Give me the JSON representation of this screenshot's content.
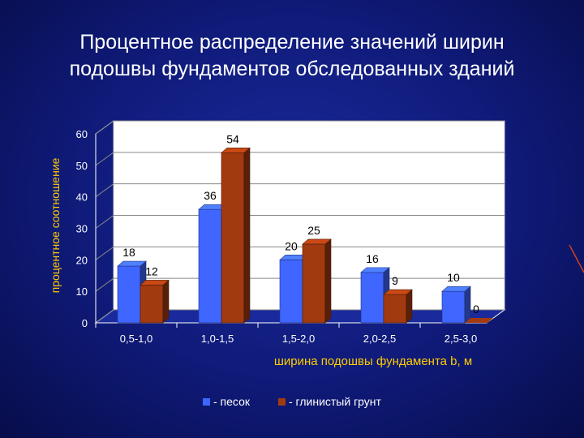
{
  "slide": {
    "title_line1": "Процентное распределение значений ширин",
    "title_line2": "подошвы фундаментов обследованных зданий"
  },
  "colors": {
    "background": "#0f1a78",
    "text": "#ffffff",
    "grid": "#ffffff",
    "sand": "#3f66ff",
    "clay": "#a23a10"
  },
  "chart_data": {
    "type": "bar",
    "categories": [
      "0,5-1,0",
      "1,0-1,5",
      "1,5-2,0",
      "2,0-2,5",
      "2,5-3,0"
    ],
    "series": [
      {
        "name": "- песок",
        "values": [
          18,
          36,
          20,
          16,
          10
        ]
      },
      {
        "name": "- глинистый грунт",
        "values": [
          12,
          54,
          25,
          9,
          0
        ]
      }
    ],
    "yticks": [
      "0",
      "10",
      "20",
      "30",
      "40",
      "50",
      "60"
    ],
    "ylim": [
      0,
      60
    ],
    "xlabel": "ширина подошвы фундамента  b, м",
    "ylabel": "процентное соотношение",
    "grid": true,
    "legend": "bottom",
    "bar_style": "3d"
  }
}
